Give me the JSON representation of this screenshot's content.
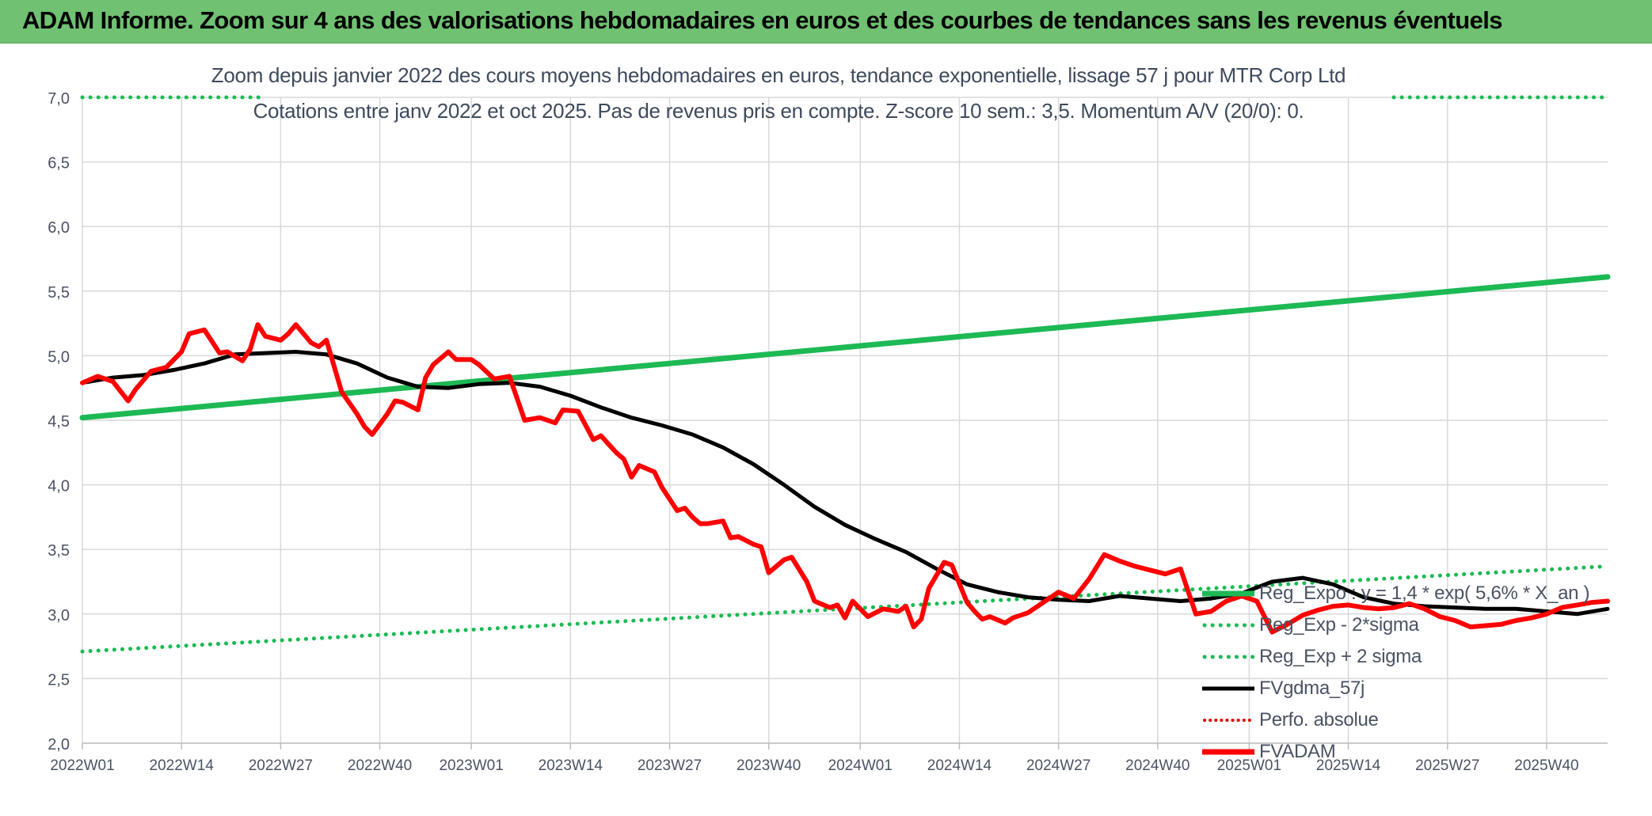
{
  "header": {
    "title": "ADAM Informe. Zoom sur 4 ans des valorisations hebdomadaires en euros et des courbes de tendances sans les revenus éventuels"
  },
  "chart_data": {
    "type": "line",
    "title": "Zoom depuis janvier 2022 des cours moyens hebdomadaires en euros, tendance exponentielle, lissage 57 j pour MTR Corp Ltd",
    "subtitle": "Cotations entre janv 2022 et oct 2025. Pas de revenus pris en compte. Z-score 10 sem.: 3,5. Momentum A/V (20/0): 0.",
    "xlabel": "",
    "ylabel": "",
    "ylim": [
      2.0,
      7.0
    ],
    "y_ticks": [
      "2,0",
      "2,5",
      "3,0",
      "3,5",
      "4,0",
      "4,5",
      "5,0",
      "5,5",
      "6,0",
      "6,5",
      "7,0"
    ],
    "x_ticks": [
      "2022W01",
      "2022W14",
      "2022W27",
      "2022W40",
      "2023W01",
      "2023W14",
      "2023W27",
      "2023W40",
      "2024W01",
      "2024W14",
      "2024W27",
      "2024W40",
      "2025W01",
      "2025W14",
      "2025W27",
      "2025W40"
    ],
    "x_range_weeks": [
      0,
      200
    ],
    "grid": true,
    "legend_position": "bottom-right",
    "series": [
      {
        "name": "Reg_Expo : y = 1,4 * exp( 5,6% *  X_an )",
        "style": "solid",
        "color": "#1db954",
        "x": [
          0,
          200
        ],
        "y": [
          4.52,
          5.61
        ]
      },
      {
        "name": "Reg_Exp - 2*sigma",
        "style": "dotted",
        "color": "#1db954",
        "x": [
          0,
          200
        ],
        "y": [
          2.71,
          3.37
        ]
      },
      {
        "name": "Reg_Exp + 2 sigma",
        "style": "dotted",
        "color": "#1db954",
        "x": [
          0,
          200
        ],
        "y": [
          7.0,
          7.0
        ]
      },
      {
        "name": "FVgdma_57j",
        "style": "solid",
        "color": "#000000",
        "x": [
          0,
          4,
          8,
          12,
          16,
          20,
          24,
          28,
          32,
          36,
          40,
          44,
          48,
          52,
          56,
          60,
          64,
          68,
          72,
          76,
          80,
          84,
          88,
          92,
          96,
          100,
          104,
          108,
          112,
          116,
          120,
          124,
          128,
          132,
          136,
          140,
          144,
          148,
          152,
          156,
          160,
          164,
          168,
          172,
          176,
          180,
          184,
          188,
          192,
          196,
          200
        ],
        "y": [
          4.79,
          4.83,
          4.85,
          4.89,
          4.94,
          5.01,
          5.02,
          5.03,
          5.01,
          4.94,
          4.83,
          4.76,
          4.75,
          4.78,
          4.79,
          4.76,
          4.69,
          4.6,
          4.52,
          4.46,
          4.39,
          4.29,
          4.16,
          4.0,
          3.83,
          3.69,
          3.58,
          3.48,
          3.35,
          3.23,
          3.17,
          3.13,
          3.11,
          3.1,
          3.14,
          3.12,
          3.1,
          3.12,
          3.16,
          3.25,
          3.28,
          3.23,
          3.13,
          3.08,
          3.06,
          3.05,
          3.04,
          3.04,
          3.02,
          3.0,
          3.04
        ]
      },
      {
        "name": "Perfo. absolue",
        "style": "dotted",
        "color": "#e00000",
        "x": [],
        "y": []
      },
      {
        "name": "FVADAM",
        "style": "solid",
        "color": "#ff0000",
        "x": [
          0,
          2,
          4,
          6,
          7,
          9,
          11,
          13,
          14,
          16,
          18,
          19,
          21,
          22,
          23,
          24,
          26,
          27,
          28,
          30,
          31,
          32,
          33,
          34,
          36,
          37,
          38,
          40,
          41,
          42,
          44,
          45,
          46,
          48,
          49,
          51,
          52,
          54,
          56,
          58,
          60,
          62,
          63,
          65,
          67,
          68,
          70,
          71,
          72,
          73,
          75,
          76,
          78,
          79,
          80,
          81,
          82,
          84,
          85,
          86,
          88,
          89,
          90,
          92,
          93,
          95,
          96,
          98,
          99,
          100,
          101,
          103,
          105,
          107,
          108,
          109,
          110,
          111,
          113,
          114,
          116,
          117,
          118,
          119,
          121,
          122,
          124,
          126,
          128,
          130,
          132,
          134,
          136,
          138,
          140,
          142,
          144,
          146,
          148,
          150,
          152,
          154,
          156,
          158,
          160,
          162,
          164,
          166,
          168,
          170,
          172,
          174,
          176,
          178,
          180,
          182,
          184,
          186,
          188,
          190,
          192,
          194,
          196,
          198,
          200
        ],
        "y": [
          4.79,
          4.84,
          4.8,
          4.65,
          4.74,
          4.88,
          4.91,
          5.03,
          5.17,
          5.2,
          5.02,
          5.03,
          4.96,
          5.05,
          5.24,
          5.15,
          5.12,
          5.17,
          5.24,
          5.1,
          5.07,
          5.12,
          4.92,
          4.72,
          4.55,
          4.45,
          4.39,
          4.55,
          4.65,
          4.64,
          4.58,
          4.83,
          4.93,
          5.03,
          4.97,
          4.97,
          4.93,
          4.82,
          4.84,
          4.5,
          4.52,
          4.48,
          4.58,
          4.57,
          4.35,
          4.38,
          4.25,
          4.2,
          4.06,
          4.15,
          4.1,
          3.98,
          3.8,
          3.82,
          3.75,
          3.7,
          3.7,
          3.72,
          3.59,
          3.6,
          3.54,
          3.52,
          3.32,
          3.42,
          3.44,
          3.25,
          3.1,
          3.05,
          3.07,
          2.97,
          3.1,
          2.98,
          3.04,
          3.02,
          3.06,
          2.9,
          2.96,
          3.2,
          3.4,
          3.38,
          3.09,
          3.02,
          2.96,
          2.98,
          2.93,
          2.97,
          3.01,
          3.09,
          3.17,
          3.12,
          3.27,
          3.46,
          3.41,
          3.37,
          3.34,
          3.31,
          3.35,
          3.0,
          3.02,
          3.1,
          3.14,
          3.1,
          2.86,
          2.92,
          2.99,
          3.03,
          3.06,
          3.07,
          3.05,
          3.04,
          3.05,
          3.08,
          3.04,
          2.98,
          2.95,
          2.9,
          2.91,
          2.92,
          2.95,
          2.97,
          3.0,
          3.05,
          3.07,
          3.09,
          3.1
        ]
      }
    ]
  },
  "legend": {
    "items": [
      {
        "label": "Reg_Expo : y = 1,4 * exp( 5,6% *  X_an )"
      },
      {
        "label": "Reg_Exp - 2*sigma"
      },
      {
        "label": "Reg_Exp + 2 sigma"
      },
      {
        "label": "FVgdma_57j"
      },
      {
        "label": "Perfo. absolue"
      },
      {
        "label": "FVADAM"
      }
    ]
  }
}
